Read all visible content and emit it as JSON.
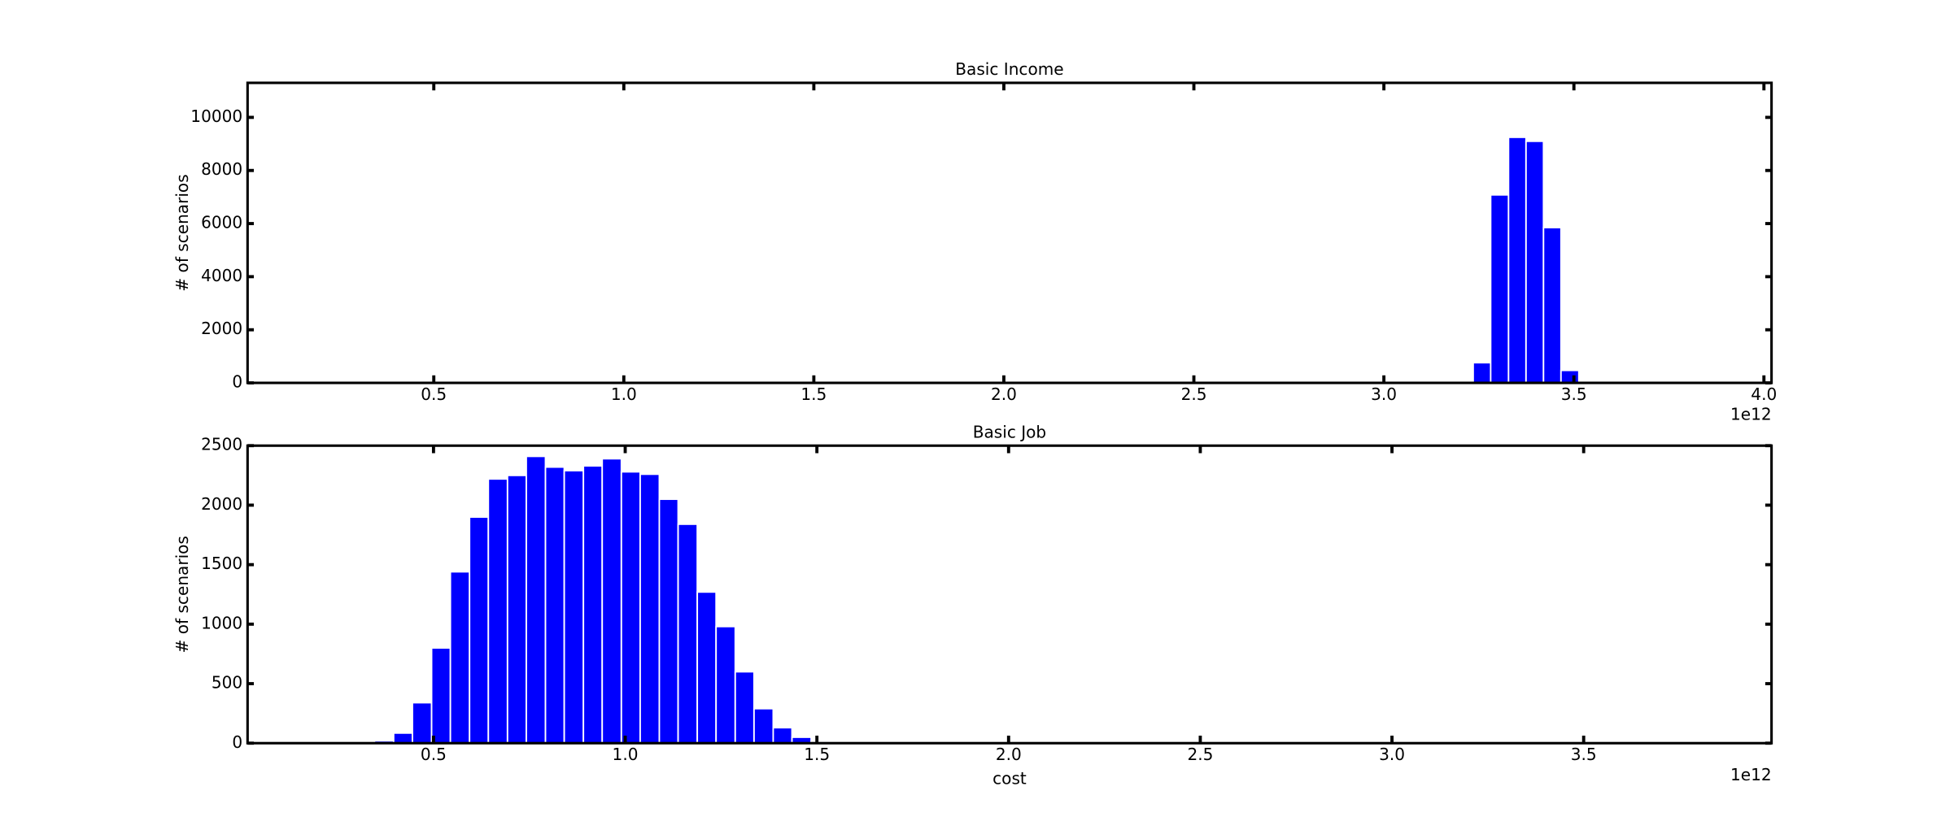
{
  "chart_data": [
    {
      "type": "histogram",
      "title": "Basic Income",
      "ylabel": "# of scenarios",
      "x_offset_label": "1e12",
      "bins": [
        3.235,
        3.281,
        3.328,
        3.374,
        3.42,
        3.466,
        3.513
      ],
      "values": [
        760,
        7080,
        9250,
        9100,
        5850,
        470
      ],
      "color": "#0000ff",
      "xlim": [
        0.01,
        4.02
      ],
      "ylim": [
        0,
        11300
      ],
      "xticks": [
        0.5,
        {
          "value": 1,
          "label": "1.0"
        },
        1.5,
        {
          "value": 2,
          "label": "2.0"
        },
        2.5,
        {
          "value": 3,
          "label": "3.0"
        },
        3.5,
        {
          "value": 4,
          "label": "4.0"
        }
      ],
      "yticks": [
        0,
        2000,
        4000,
        6000,
        8000,
        10000
      ]
    },
    {
      "type": "histogram",
      "title": "Basic Job",
      "ylabel": "# of scenarios",
      "xlabel": "cost",
      "x_offset_label": "1e12",
      "bins": [
        0.346,
        0.396,
        0.445,
        0.495,
        0.544,
        0.594,
        0.643,
        0.693,
        0.742,
        0.792,
        0.841,
        0.891,
        0.94,
        0.99,
        1.039,
        1.089,
        1.138,
        1.188,
        1.237,
        1.287,
        1.336,
        1.386,
        1.435,
        1.485,
        1.534,
        1.584
      ],
      "values": [
        20,
        85,
        340,
        800,
        1440,
        1900,
        2220,
        2250,
        2410,
        2320,
        2290,
        2330,
        2390,
        2280,
        2260,
        2050,
        1840,
        1270,
        980,
        600,
        290,
        130,
        50,
        15,
        5
      ],
      "color": "#0000ff",
      "xlim": [
        0.015,
        3.99
      ],
      "ylim": [
        0,
        2500
      ],
      "xticks": [
        0.5,
        {
          "value": 1,
          "label": "1.0"
        },
        1.5,
        {
          "value": 2,
          "label": "2.0"
        },
        2.5,
        {
          "value": 3,
          "label": "3.0"
        },
        3.5
      ],
      "yticks": [
        0,
        500,
        1000,
        1500,
        2000,
        2500
      ]
    }
  ]
}
